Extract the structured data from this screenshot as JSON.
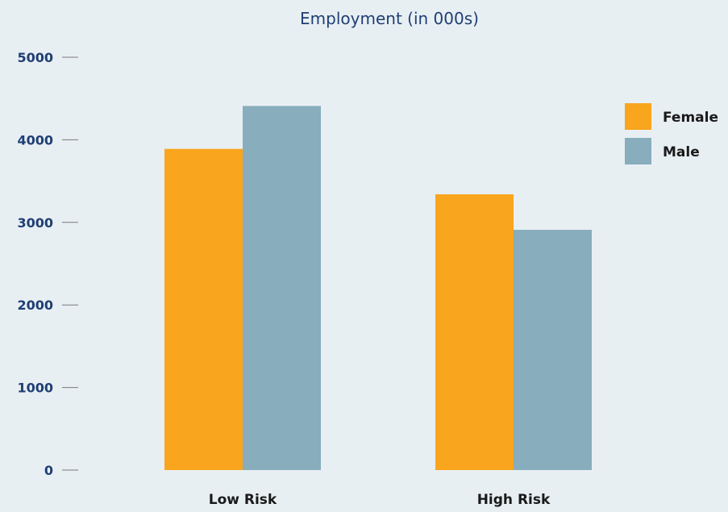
{
  "chart_data": {
    "type": "bar",
    "title": "Employment (in 000s)",
    "xlabel": "",
    "ylabel": "",
    "categories": [
      "Low Risk",
      "High Risk"
    ],
    "series": [
      {
        "name": "Female",
        "values": [
          3890,
          3340
        ]
      },
      {
        "name": "Male",
        "values": [
          4410,
          2910
        ]
      }
    ],
    "ylim": [
      0,
      5000
    ],
    "yticks": [
      "0",
      "1000",
      "2000",
      "3000",
      "4000",
      "5000"
    ],
    "grid": false,
    "legend": "right",
    "colors": {
      "Female": "#f9a51d",
      "Male": "#88adbd",
      "background": "#e8eff3",
      "title": "#1f3f74"
    }
  }
}
